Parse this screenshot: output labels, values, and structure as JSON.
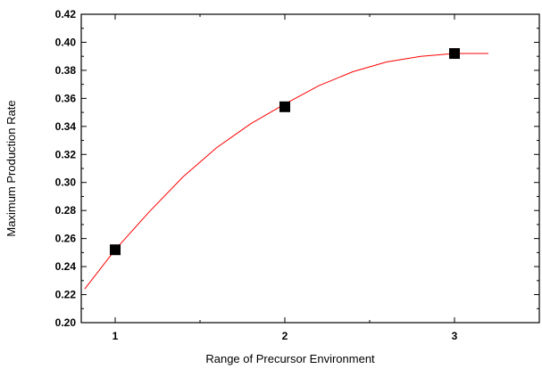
{
  "chart_data": {
    "type": "scatter",
    "title": "",
    "xlabel": "Range of Precursor Environment",
    "ylabel": "Maximum Production Rate",
    "xlim": [
      0.8,
      3.5
    ],
    "ylim": [
      0.2,
      0.42
    ],
    "x_ticks": [
      1,
      2,
      3
    ],
    "x_tick_labels": [
      "1",
      "2",
      "3"
    ],
    "x_minor_step": 0.5,
    "y_ticks": [
      0.2,
      0.22,
      0.24,
      0.26,
      0.28,
      0.3,
      0.32,
      0.34,
      0.36,
      0.38,
      0.4,
      0.42
    ],
    "y_tick_labels": [
      "0.20",
      "0.22",
      "0.24",
      "0.26",
      "0.28",
      "0.30",
      "0.32",
      "0.34",
      "0.36",
      "0.38",
      "0.40",
      "0.42"
    ],
    "y_minor_step": 0.01,
    "grid": false,
    "legend": "none",
    "series": [
      {
        "type": "scatter",
        "marker": "square",
        "color": "#000000",
        "x": [
          1,
          2,
          3
        ],
        "y": [
          0.252,
          0.354,
          0.392
        ]
      },
      {
        "type": "line",
        "color": "#ff0000",
        "x": [
          0.82,
          1.0,
          1.2,
          1.4,
          1.6,
          1.8,
          2.0,
          2.2,
          2.4,
          2.6,
          2.8,
          3.0,
          3.2
        ],
        "y": [
          0.224,
          0.252,
          0.279,
          0.304,
          0.325,
          0.342,
          0.356,
          0.369,
          0.379,
          0.386,
          0.39,
          0.392,
          0.392
        ]
      }
    ]
  }
}
